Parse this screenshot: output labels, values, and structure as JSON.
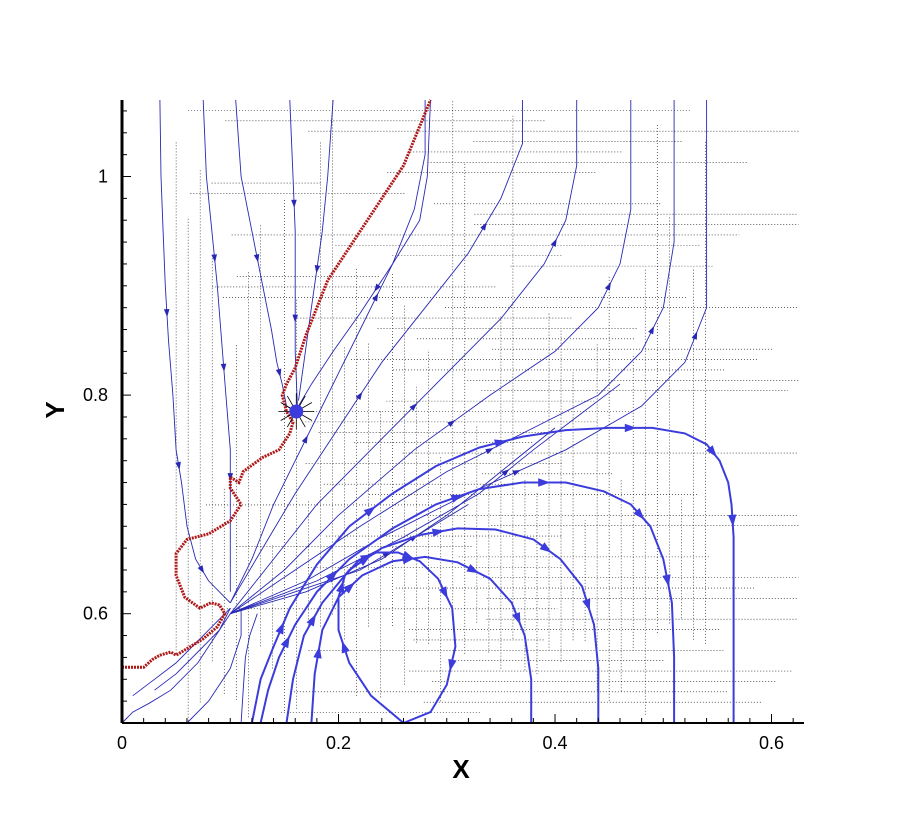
{
  "chart_data": {
    "type": "line",
    "title": "",
    "xlabel": "X",
    "ylabel": "Y",
    "xlim": [
      0,
      0.63
    ],
    "ylim": [
      0.5,
      1.07
    ],
    "x_ticks": [
      0,
      0.2,
      0.4,
      0.6
    ],
    "x_tick_labels": [
      "0",
      "0.2",
      "0.4",
      "0.6"
    ],
    "y_ticks": [
      0.6,
      0.8,
      1.0
    ],
    "y_tick_labels": [
      "0.6",
      "0.8",
      "1"
    ],
    "grid": false,
    "colors": {
      "streamline": "#2828b4",
      "streamline_bold": "#3c3cdc",
      "interface": "#b01818",
      "mesh": "#000000",
      "axes": "#000000"
    },
    "interface_curve": {
      "x": [
        0.0,
        0.02,
        0.028,
        0.035,
        0.045,
        0.05,
        0.06,
        0.075,
        0.088,
        0.095,
        0.09,
        0.082,
        0.072,
        0.058,
        0.05,
        0.05,
        0.06,
        0.08,
        0.1,
        0.11,
        0.1,
        0.1,
        0.108,
        0.112,
        0.13,
        0.145,
        0.155,
        0.158,
        0.152,
        0.148,
        0.152,
        0.16,
        0.165,
        0.17,
        0.178,
        0.19,
        0.21,
        0.23,
        0.26,
        0.285
      ],
      "y": [
        0.551,
        0.551,
        0.558,
        0.562,
        0.565,
        0.562,
        0.568,
        0.577,
        0.588,
        0.6,
        0.608,
        0.61,
        0.605,
        0.615,
        0.635,
        0.655,
        0.668,
        0.673,
        0.685,
        0.7,
        0.715,
        0.725,
        0.72,
        0.73,
        0.743,
        0.75,
        0.765,
        0.775,
        0.785,
        0.8,
        0.81,
        0.825,
        0.84,
        0.855,
        0.875,
        0.905,
        0.935,
        0.965,
        1.01,
        1.07
      ]
    },
    "series": [
      {
        "x": [
          0.035,
          0.036,
          0.038,
          0.04,
          0.043,
          0.047,
          0.05,
          0.055,
          0.06,
          0.068,
          0.08,
          0.095,
          0.1
        ],
        "y": [
          1.07,
          1.0,
          0.95,
          0.9,
          0.85,
          0.8,
          0.75,
          0.72,
          0.68,
          0.65,
          0.63,
          0.615,
          0.61
        ],
        "width": 1,
        "arrows": 3
      },
      {
        "x": [
          0.075,
          0.078,
          0.083,
          0.088,
          0.092,
          0.096,
          0.1,
          0.1,
          0.1
        ],
        "y": [
          1.07,
          1.0,
          0.95,
          0.9,
          0.85,
          0.8,
          0.75,
          0.7,
          0.62
        ],
        "width": 1,
        "arrows": 3
      },
      {
        "x": [
          0.105,
          0.11,
          0.12,
          0.13,
          0.138,
          0.143,
          0.148,
          0.152,
          0.16
        ],
        "y": [
          1.07,
          1.0,
          0.95,
          0.9,
          0.86,
          0.83,
          0.81,
          0.79,
          0.785
        ],
        "width": 1,
        "arrows": 2
      },
      {
        "x": [
          0.155,
          0.158,
          0.16,
          0.16,
          0.16,
          0.162
        ],
        "y": [
          1.07,
          1.0,
          0.95,
          0.9,
          0.84,
          0.79
        ],
        "width": 1,
        "arrows": 2
      },
      {
        "x": [
          0.195,
          0.19,
          0.185,
          0.175,
          0.168,
          0.163
        ],
        "y": [
          1.07,
          1.0,
          0.95,
          0.88,
          0.83,
          0.795
        ],
        "width": 1,
        "arrows": 1
      },
      {
        "x": [
          0.285,
          0.282,
          0.275,
          0.25,
          0.22,
          0.195,
          0.175,
          0.163
        ],
        "y": [
          1.07,
          1.0,
          0.96,
          0.92,
          0.875,
          0.84,
          0.81,
          0.79
        ],
        "width": 1,
        "arrows": 1
      },
      {
        "x": [
          0.1,
          0.12,
          0.14,
          0.16,
          0.18,
          0.2,
          0.22,
          0.25,
          0.27,
          0.28,
          0.28
        ],
        "y": [
          0.61,
          0.65,
          0.7,
          0.74,
          0.78,
          0.82,
          0.86,
          0.92,
          0.97,
          1.02,
          1.07
        ],
        "width": 1,
        "arrows": 2
      },
      {
        "x": [
          0.1,
          0.13,
          0.16,
          0.2,
          0.24,
          0.28,
          0.32,
          0.35,
          0.37,
          0.37
        ],
        "y": [
          0.61,
          0.66,
          0.71,
          0.77,
          0.83,
          0.88,
          0.93,
          0.98,
          1.03,
          1.07
        ],
        "width": 1,
        "arrows": 2
      },
      {
        "x": [
          0.1,
          0.14,
          0.18,
          0.24,
          0.3,
          0.35,
          0.39,
          0.41,
          0.42,
          0.42
        ],
        "y": [
          0.6,
          0.65,
          0.7,
          0.76,
          0.82,
          0.87,
          0.92,
          0.96,
          1.01,
          1.07
        ],
        "width": 1,
        "arrows": 2
      },
      {
        "x": [
          0.1,
          0.15,
          0.2,
          0.27,
          0.34,
          0.4,
          0.44,
          0.46,
          0.47,
          0.47
        ],
        "y": [
          0.6,
          0.64,
          0.69,
          0.75,
          0.8,
          0.84,
          0.88,
          0.92,
          0.97,
          1.07
        ],
        "width": 1,
        "arrows": 2
      },
      {
        "x": [
          0.1,
          0.16,
          0.22,
          0.3,
          0.38,
          0.44,
          0.48,
          0.5,
          0.51,
          0.51
        ],
        "y": [
          0.6,
          0.64,
          0.68,
          0.73,
          0.77,
          0.8,
          0.84,
          0.88,
          0.94,
          1.07
        ],
        "width": 1,
        "arrows": 2
      },
      {
        "x": [
          0.1,
          0.17,
          0.24,
          0.32,
          0.41,
          0.48,
          0.52,
          0.54,
          0.54,
          0.54
        ],
        "y": [
          0.6,
          0.63,
          0.67,
          0.71,
          0.75,
          0.79,
          0.83,
          0.88,
          0.95,
          1.07
        ],
        "width": 1,
        "arrows": 2
      },
      {
        "x": [
          0.1,
          0.18,
          0.26,
          0.33,
          0.38,
          0.42,
          0.46
        ],
        "y": [
          0.6,
          0.63,
          0.67,
          0.71,
          0.75,
          0.78,
          0.81
        ],
        "width": 1,
        "arrows": 1
      },
      {
        "x": [
          0.1,
          0.17,
          0.24,
          0.3,
          0.35,
          0.4
        ],
        "y": [
          0.6,
          0.62,
          0.65,
          0.69,
          0.73,
          0.77
        ],
        "width": 1,
        "arrows": 1
      },
      {
        "x": [
          0.1,
          0.16,
          0.22,
          0.27,
          0.32
        ],
        "y": [
          0.6,
          0.62,
          0.64,
          0.67,
          0.7
        ],
        "width": 1,
        "arrows": 1
      },
      {
        "x": [
          0.01,
          0.03,
          0.05,
          0.07,
          0.09,
          0.1
        ],
        "y": [
          0.525,
          0.54,
          0.555,
          0.575,
          0.595,
          0.605
        ],
        "width": 1,
        "arrows": 0
      },
      {
        "x": [
          0.03,
          0.05,
          0.07,
          0.09,
          0.1
        ],
        "y": [
          0.53,
          0.545,
          0.565,
          0.585,
          0.6
        ],
        "width": 1,
        "arrows": 0
      },
      {
        "x": [
          0.06,
          0.08,
          0.1,
          0.11,
          0.11
        ],
        "y": [
          0.5,
          0.52,
          0.55,
          0.58,
          0.605
        ],
        "width": 1,
        "arrows": 0
      },
      {
        "x": [
          0.11,
          0.112,
          0.114,
          0.118,
          0.125
        ],
        "y": [
          0.5,
          0.53,
          0.56,
          0.58,
          0.6
        ],
        "width": 1,
        "arrows": 0
      },
      {
        "x": [
          0.0,
          0.01,
          0.025,
          0.045,
          0.07,
          0.09,
          0.1
        ],
        "y": [
          0.5,
          0.51,
          0.518,
          0.53,
          0.555,
          0.585,
          0.605
        ],
        "width": 1,
        "arrows": 0
      },
      {
        "x": [
          0.565,
          0.565,
          0.565,
          0.565,
          0.563,
          0.56,
          0.552,
          0.54,
          0.52,
          0.49,
          0.45,
          0.41,
          0.37,
          0.33,
          0.29,
          0.25,
          0.21,
          0.18,
          0.155,
          0.14,
          0.128,
          0.12
        ],
        "y": [
          0.5,
          0.56,
          0.62,
          0.67,
          0.7,
          0.72,
          0.74,
          0.755,
          0.765,
          0.77,
          0.77,
          0.768,
          0.762,
          0.752,
          0.735,
          0.71,
          0.68,
          0.645,
          0.605,
          0.57,
          0.54,
          0.5
        ],
        "width": 2,
        "arrows": 6,
        "reverse": true
      },
      {
        "x": [
          0.51,
          0.51,
          0.508,
          0.5,
          0.488,
          0.47,
          0.445,
          0.41,
          0.37,
          0.33,
          0.29,
          0.25,
          0.21,
          0.18,
          0.16,
          0.145,
          0.135,
          0.128
        ],
        "y": [
          0.5,
          0.56,
          0.61,
          0.65,
          0.68,
          0.7,
          0.712,
          0.72,
          0.72,
          0.714,
          0.7,
          0.678,
          0.65,
          0.62,
          0.59,
          0.56,
          0.53,
          0.5
        ],
        "width": 2,
        "arrows": 6,
        "reverse": true
      },
      {
        "x": [
          0.44,
          0.44,
          0.436,
          0.425,
          0.405,
          0.38,
          0.345,
          0.31,
          0.275,
          0.24,
          0.21,
          0.185,
          0.168,
          0.158,
          0.152
        ],
        "y": [
          0.5,
          0.55,
          0.59,
          0.625,
          0.65,
          0.668,
          0.677,
          0.678,
          0.672,
          0.66,
          0.64,
          0.61,
          0.58,
          0.54,
          0.5
        ],
        "width": 2,
        "arrows": 5,
        "reverse": true
      },
      {
        "x": [
          0.378,
          0.378,
          0.372,
          0.36,
          0.34,
          0.31,
          0.28,
          0.25,
          0.222,
          0.2,
          0.185,
          0.178,
          0.175
        ],
        "y": [
          0.5,
          0.54,
          0.58,
          0.61,
          0.632,
          0.647,
          0.652,
          0.648,
          0.635,
          0.615,
          0.585,
          0.545,
          0.5
        ],
        "width": 2,
        "arrows": 5,
        "reverse": true
      },
      {
        "x": [
          0.26,
          0.23,
          0.21,
          0.2,
          0.2,
          0.206,
          0.218,
          0.235,
          0.255,
          0.275,
          0.292,
          0.305,
          0.308,
          0.3,
          0.285,
          0.26
        ],
        "y": [
          0.5,
          0.525,
          0.555,
          0.585,
          0.615,
          0.635,
          0.648,
          0.656,
          0.656,
          0.648,
          0.632,
          0.605,
          0.57,
          0.535,
          0.51,
          0.5
        ],
        "width": 2,
        "arrows": 6
      }
    ]
  }
}
